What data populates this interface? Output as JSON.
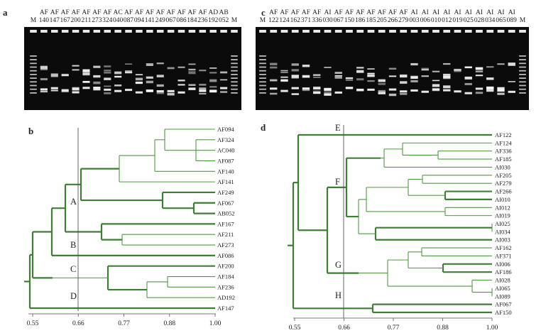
{
  "panel_a": {
    "label": "a",
    "lanes": [
      {
        "top": "",
        "bottom": "M"
      },
      {
        "top": "AF",
        "bottom": "140"
      },
      {
        "top": "AF",
        "bottom": "147"
      },
      {
        "top": "AF",
        "bottom": "167"
      },
      {
        "top": "AF",
        "bottom": "200"
      },
      {
        "top": "AF",
        "bottom": "211"
      },
      {
        "top": "AF",
        "bottom": "273"
      },
      {
        "top": "AF",
        "bottom": "324"
      },
      {
        "top": "AC",
        "bottom": "040"
      },
      {
        "top": "AF",
        "bottom": "087"
      },
      {
        "top": "AF",
        "bottom": "094"
      },
      {
        "top": "AF",
        "bottom": "141"
      },
      {
        "top": "AF",
        "bottom": "249"
      },
      {
        "top": "AF",
        "bottom": "067"
      },
      {
        "top": "AF",
        "bottom": "086"
      },
      {
        "top": "AF",
        "bottom": "184"
      },
      {
        "top": "AF",
        "bottom": "236"
      },
      {
        "top": "AD",
        "bottom": "192"
      },
      {
        "top": "AB",
        "bottom": "052"
      },
      {
        "top": "",
        "bottom": "M"
      }
    ]
  },
  "panel_c": {
    "label": "c",
    "lanes": [
      {
        "top": "",
        "bottom": "M"
      },
      {
        "top": "AF",
        "bottom": "122"
      },
      {
        "top": "AF",
        "bottom": "124"
      },
      {
        "top": "AF",
        "bottom": "162"
      },
      {
        "top": "AF",
        "bottom": "371"
      },
      {
        "top": "AF",
        "bottom": "336"
      },
      {
        "top": "AI",
        "bottom": "030"
      },
      {
        "top": "AF",
        "bottom": "067"
      },
      {
        "top": "AF",
        "bottom": "150"
      },
      {
        "top": "AF",
        "bottom": "186"
      },
      {
        "top": "AF",
        "bottom": "185"
      },
      {
        "top": "AF",
        "bottom": "205"
      },
      {
        "top": "AF",
        "bottom": "266"
      },
      {
        "top": "AF",
        "bottom": "279"
      },
      {
        "top": "AI",
        "bottom": "003"
      },
      {
        "top": "AI",
        "bottom": "006"
      },
      {
        "top": "AI",
        "bottom": "010"
      },
      {
        "top": "AI",
        "bottom": "012"
      },
      {
        "top": "AI",
        "bottom": "019"
      },
      {
        "top": "AI",
        "bottom": "025"
      },
      {
        "top": "AI",
        "bottom": "028"
      },
      {
        "top": "AI",
        "bottom": "034"
      },
      {
        "top": "AI",
        "bottom": "065"
      },
      {
        "top": "AI",
        "bottom": "089"
      },
      {
        "top": "",
        "bottom": "M"
      }
    ]
  },
  "panel_b": {
    "label": "b",
    "leaves": [
      "AF094",
      "AF324",
      "AC040",
      "AF087",
      "AF140",
      "AF141",
      "AF249",
      "AF067",
      "AB052",
      "AF167",
      "AF211",
      "AF273",
      "AF086",
      "AF200",
      "AF184",
      "AF236",
      "AD192",
      "AF147"
    ],
    "groups": [
      "A",
      "B",
      "C",
      "D"
    ]
  },
  "panel_d": {
    "label": "d",
    "leaves": [
      "AF122",
      "AF124",
      "AF336",
      "AF185",
      "AI030",
      "AF205",
      "AF279",
      "AF266",
      "AI010",
      "AI012",
      "AI019",
      "AI025",
      "AI034",
      "AI003",
      "AF162",
      "AF371",
      "AI006",
      "AF186",
      "AI028",
      "AI065",
      "AI089",
      "AF067",
      "AF150"
    ],
    "groups": [
      "E",
      "F",
      "G",
      "H"
    ]
  },
  "axis": {
    "ticks": [
      "0.55",
      "0.66",
      "0.77",
      "0.88",
      "1.00"
    ],
    "threshold": "0.66"
  },
  "colors": {
    "tree": "#4f9a43",
    "tree_thick": "#3c7f33",
    "gel_background": "#0b0b0b",
    "band": "#f2f2f2"
  }
}
